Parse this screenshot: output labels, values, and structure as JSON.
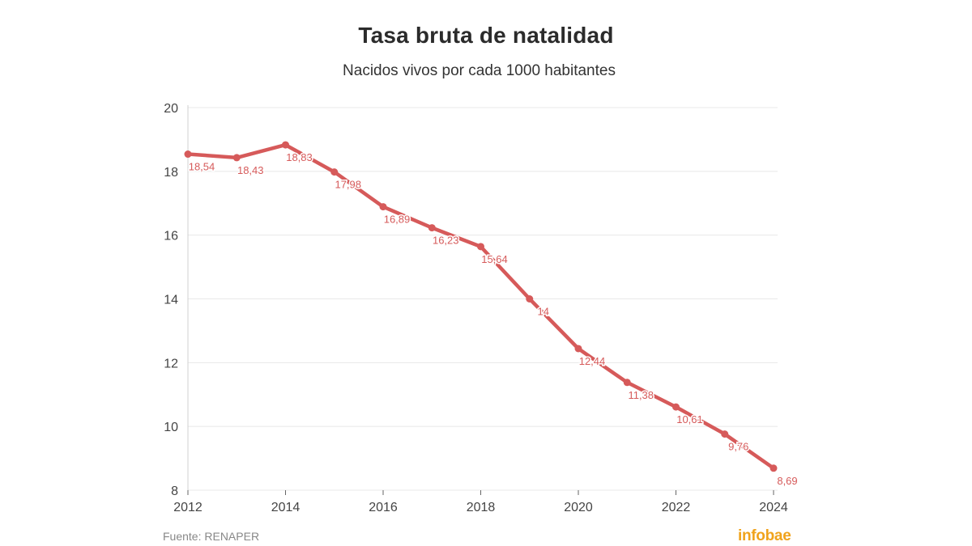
{
  "header": {
    "title": "Tasa bruta de natalidad",
    "subtitle": "Nacidos vivos por cada 1000 habitantes"
  },
  "footer": {
    "source": "Fuente: RENAPER",
    "brand": "infobae",
    "brand_color": "#f0a31c"
  },
  "chart_data": {
    "type": "line",
    "title": "Tasa bruta de natalidad",
    "subtitle": "Nacidos vivos por cada 1000 habitantes",
    "x": [
      2012,
      2013,
      2014,
      2015,
      2016,
      2017,
      2018,
      2019,
      2020,
      2021,
      2022,
      2023,
      2024
    ],
    "series": [
      {
        "values": [
          18.54,
          18.43,
          18.83,
          17.98,
          16.89,
          16.23,
          15.64,
          14,
          12.44,
          11.38,
          10.61,
          9.76,
          8.69
        ],
        "labels": [
          "18,54",
          "18,43",
          "18,83",
          "17,98",
          "16,89",
          "16,23",
          "15,64",
          "14",
          "12,44",
          "11,38",
          "10,61",
          "9,76",
          "8,69"
        ],
        "color": "#d65a5a"
      }
    ],
    "xticks": [
      "2012",
      "2014",
      "2016",
      "2018",
      "2020",
      "2022",
      "2024"
    ],
    "yticks": [
      "8",
      "10",
      "12",
      "14",
      "16",
      "18",
      "20"
    ],
    "xlim": [
      2012,
      2024
    ],
    "ylim": [
      8,
      20
    ],
    "grid": true,
    "legend": "none"
  }
}
